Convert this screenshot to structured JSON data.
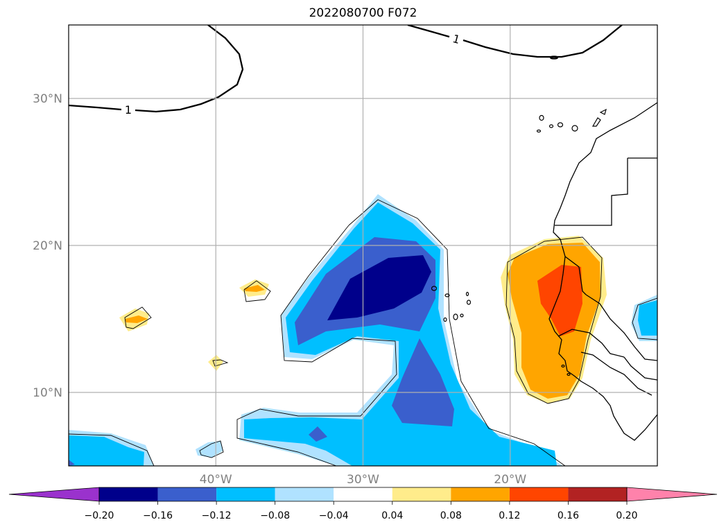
{
  "chart_data": {
    "type": "map-contour",
    "title": "2022080700 F072",
    "x_range": [
      -50,
      -10
    ],
    "y_range": [
      5,
      35
    ],
    "x_ticks": [
      -40,
      -30,
      -20
    ],
    "x_tick_labels": [
      "40°W",
      "30°W",
      "20°W"
    ],
    "y_ticks": [
      10,
      20,
      30
    ],
    "y_tick_labels": [
      "10°N",
      "20°N",
      "30°N"
    ],
    "grid": true,
    "contour_line_label": "1",
    "colorbar": {
      "levels": [
        -0.2,
        -0.16,
        -0.12,
        -0.08,
        -0.04,
        0.04,
        0.08,
        0.12,
        0.16,
        0.2
      ],
      "tick_labels": [
        "−0.20",
        "−0.16",
        "−0.12",
        "−0.08",
        "−0.04",
        "0.04",
        "0.08",
        "0.12",
        "0.16",
        "0.20"
      ],
      "colors": [
        "#9a32cd",
        "#00008b",
        "#3a5fcd",
        "#00bfff",
        "#b0e2ff",
        "#ffffff",
        "#ffec8b",
        "#ffa500",
        "#ff4500",
        "#b22222",
        "#ff82ab"
      ],
      "extend": "both"
    }
  }
}
